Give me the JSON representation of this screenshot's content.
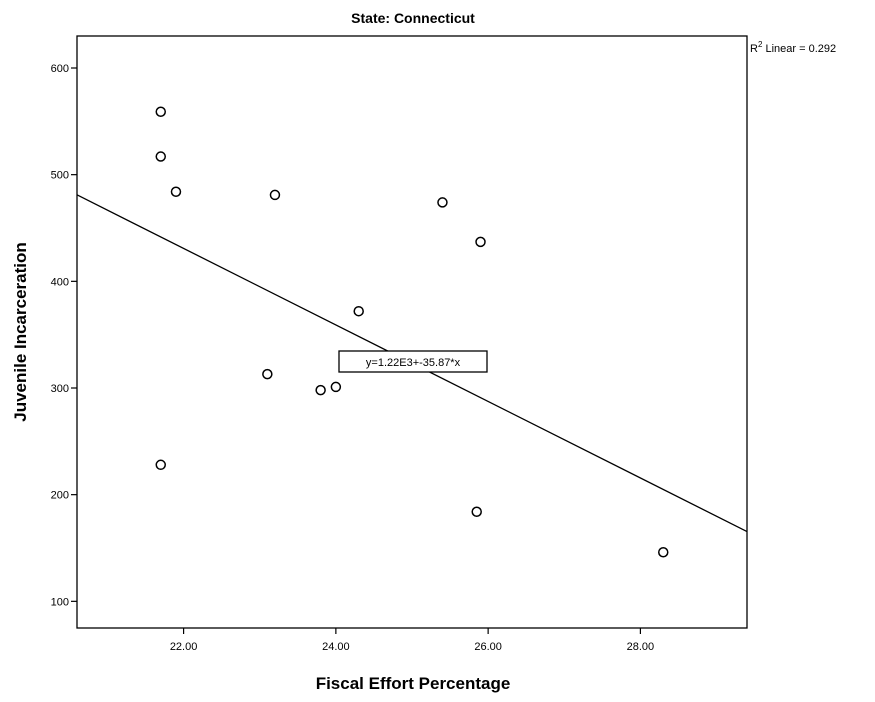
{
  "chart_data": {
    "type": "scatter",
    "title": "State: Connecticut",
    "xlabel": "Fiscal Effort Percentage",
    "ylabel": "Juvenile Incarceration",
    "xlim": [
      20.6,
      29.4
    ],
    "ylim": [
      75,
      630
    ],
    "xticks": [
      22.0,
      24.0,
      26.0,
      28.0
    ],
    "xtick_labels": [
      "22.00",
      "24.00",
      "26.00",
      "28.00"
    ],
    "yticks": [
      100,
      200,
      300,
      400,
      500,
      600
    ],
    "ytick_labels": [
      "100",
      "200",
      "300",
      "400",
      "500",
      "600"
    ],
    "points": [
      {
        "x": 21.7,
        "y": 559
      },
      {
        "x": 21.7,
        "y": 517
      },
      {
        "x": 21.9,
        "y": 484
      },
      {
        "x": 23.2,
        "y": 481
      },
      {
        "x": 25.4,
        "y": 474
      },
      {
        "x": 25.9,
        "y": 437
      },
      {
        "x": 24.3,
        "y": 372
      },
      {
        "x": 23.1,
        "y": 313
      },
      {
        "x": 24.0,
        "y": 301
      },
      {
        "x": 23.8,
        "y": 298
      },
      {
        "x": 21.7,
        "y": 228
      },
      {
        "x": 25.85,
        "y": 184
      },
      {
        "x": 28.3,
        "y": 146
      }
    ],
    "fit_line": {
      "intercept": 1220,
      "slope": -35.87,
      "x_start": 20.6,
      "x_end": 29.4
    },
    "fit_equation": "y=1.22E3+-35.87*x",
    "r2_label_prefix": "R",
    "r2_label_sup": "2",
    "r2_label_suffix": " Linear = 0.292",
    "grid": false,
    "legend": "none",
    "colors": {
      "marker": "#000000",
      "line": "#000000",
      "frame": "#000000"
    }
  }
}
